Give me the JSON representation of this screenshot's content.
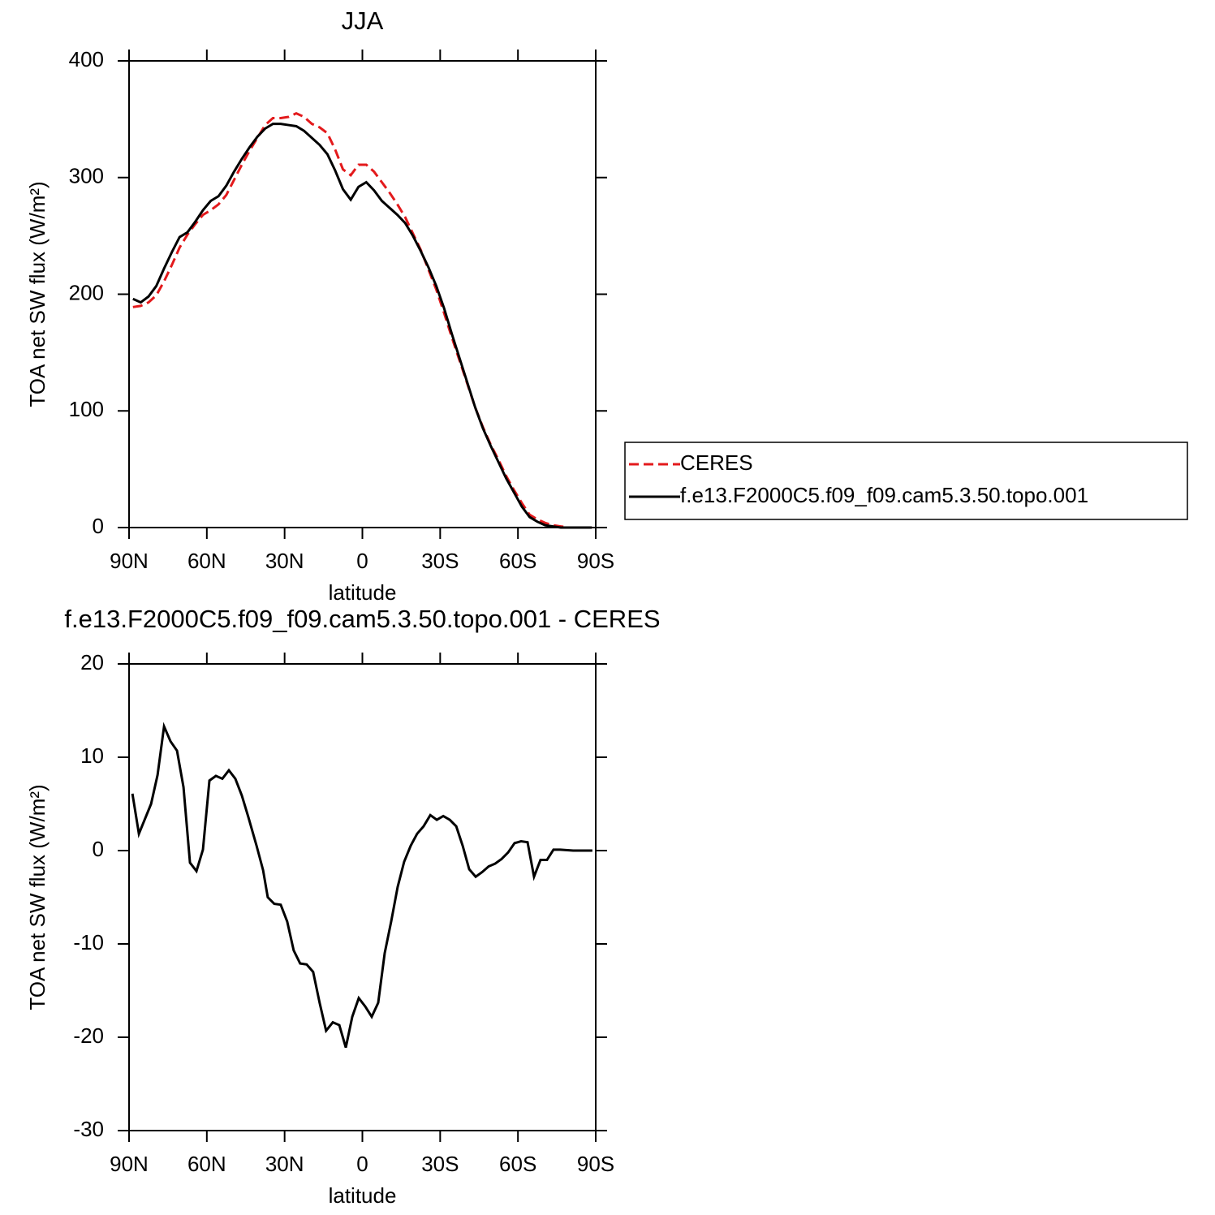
{
  "chart_data": [
    {
      "type": "line",
      "title": "JJA",
      "xlabel": "latitude",
      "ylabel": "TOA net SW flux (W/m²)",
      "x": [
        88.5,
        85.5,
        82.5,
        79.5,
        76.5,
        73.5,
        70.5,
        67.5,
        64.5,
        61.5,
        58.5,
        55.5,
        52.5,
        49.5,
        46.5,
        43.5,
        40.5,
        37.5,
        34.5,
        31.5,
        28.5,
        25.5,
        22.5,
        19.5,
        16.5,
        13.5,
        10.5,
        7.5,
        4.5,
        1.5,
        -1.5,
        -4.5,
        -7.5,
        -10.5,
        -13.5,
        -16.5,
        -19.5,
        -22.5,
        -25.5,
        -28.5,
        -31.5,
        -34.5,
        -37.5,
        -40.5,
        -43.5,
        -46.5,
        -49.5,
        -52.5,
        -55.5,
        -58.5,
        -61.5,
        -64.5,
        -67.5,
        -70.5,
        -73.5,
        -76.5,
        -79.5,
        -82.5,
        -85.5,
        -88.5
      ],
      "series": [
        {
          "name": "CERES",
          "color": "#e31a1c",
          "linestyle": "dashed",
          "values": [
            189,
            190,
            193,
            199,
            211,
            225,
            240,
            251,
            260,
            268,
            272,
            277,
            285,
            298,
            311,
            323,
            334,
            345,
            351,
            351,
            352,
            355,
            352,
            346,
            343,
            338,
            324,
            307,
            302,
            311,
            311,
            305,
            296,
            287,
            277,
            266,
            252,
            238,
            221,
            204,
            184,
            163,
            143,
            123,
            103,
            86,
            71,
            58,
            44,
            32,
            21,
            11,
            7,
            4,
            2,
            1,
            0,
            0,
            0,
            0
          ]
        },
        {
          "name": "f.e13.F2000C5.f09_f09.cam5.3.50.topo.001",
          "color": "#000000",
          "linestyle": "solid",
          "values": [
            196,
            193,
            198,
            207,
            222,
            236,
            249,
            253,
            262,
            272,
            280,
            284,
            293,
            305,
            316,
            326,
            335,
            342,
            346,
            346,
            345,
            344,
            340,
            334,
            328,
            320,
            306,
            290,
            281,
            292,
            296,
            289,
            280,
            274,
            268,
            261,
            250,
            237,
            223,
            207,
            188,
            166,
            145,
            124,
            103,
            85,
            70,
            56,
            42,
            30,
            18,
            9,
            5,
            2,
            1,
            0,
            0,
            0,
            0,
            0
          ]
        }
      ],
      "xlim": [
        90,
        -90
      ],
      "xticks": [
        {
          "value": 90,
          "label": "90N"
        },
        {
          "value": 60,
          "label": "60N"
        },
        {
          "value": 30,
          "label": "30N"
        },
        0,
        {
          "value": -30,
          "label": "30S"
        },
        {
          "value": -60,
          "label": "60S"
        },
        {
          "value": -90,
          "label": "90S"
        }
      ],
      "ylim": [
        0,
        400
      ],
      "yticks": [
        0,
        100,
        200,
        300,
        400
      ]
    },
    {
      "type": "line",
      "title": "f.e13.F2000C5.f09_f09.cam5.3.50.topo.001 - CERES",
      "xlabel": "latitude",
      "ylabel": "TOA net SW flux (W/m²)",
      "x": [
        88.7,
        86.2,
        81.5,
        79,
        76.5,
        74,
        71.5,
        69,
        66.5,
        64,
        61.5,
        59,
        56.5,
        54,
        51.5,
        49,
        46.5,
        44,
        40.8,
        38.3,
        36.5,
        34,
        31.5,
        29,
        26.5,
        24,
        21.5,
        19,
        16.5,
        14,
        11.4,
        8.9,
        6.4,
        3.9,
        1.4,
        -1.1,
        -3.6,
        -6.1,
        -8.6,
        -11.1,
        -13.6,
        -16.1,
        -18.6,
        -21.1,
        -23.6,
        -26.2,
        -28.7,
        -31.2,
        -33.7,
        -36.2,
        -38.7,
        -41.2,
        -43.7,
        -46.2,
        -48.7,
        -51.2,
        -53.7,
        -56.2,
        -58.7,
        -61.2,
        -63.7,
        -66.2,
        -68.7,
        -71.2,
        -73.7,
        -76.3,
        -81.3,
        -88.7
      ],
      "values": [
        6.1,
        1.8,
        5.0,
        8.1,
        13.3,
        11.7,
        10.7,
        6.8,
        -1.3,
        -2.2,
        0.1,
        7.5,
        8.0,
        7.7,
        8.6,
        7.7,
        5.9,
        3.6,
        0.5,
        -2.1,
        -5.0,
        -5.7,
        -5.8,
        -7.6,
        -10.7,
        -12.1,
        -12.2,
        -13.0,
        -16.3,
        -19.3,
        -18.4,
        -18.7,
        -21.1,
        -17.8,
        -15.8,
        -16.7,
        -17.8,
        -16.3,
        -11.0,
        -7.6,
        -3.9,
        -1.2,
        0.5,
        1.8,
        2.6,
        3.8,
        3.3,
        3.7,
        3.3,
        2.6,
        0.5,
        -2.0,
        -2.8,
        -2.3,
        -1.7,
        -1.4,
        -0.9,
        -0.2,
        0.8,
        1.0,
        0.9,
        -2.8,
        -1.0,
        -1.0,
        0.1,
        0.1,
        0,
        0
      ],
      "color": "#000000",
      "xlim": [
        90,
        -90
      ],
      "xticks": [
        {
          "value": 90,
          "label": "90N"
        },
        {
          "value": 60,
          "label": "60N"
        },
        {
          "value": 30,
          "label": "30N"
        },
        0,
        {
          "value": -30,
          "label": "30S"
        },
        {
          "value": -60,
          "label": "60S"
        },
        {
          "value": -90,
          "label": "90S"
        }
      ],
      "ylim": [
        -30,
        20
      ],
      "yticks": [
        -30,
        -20,
        -10,
        0,
        10,
        20
      ]
    }
  ]
}
